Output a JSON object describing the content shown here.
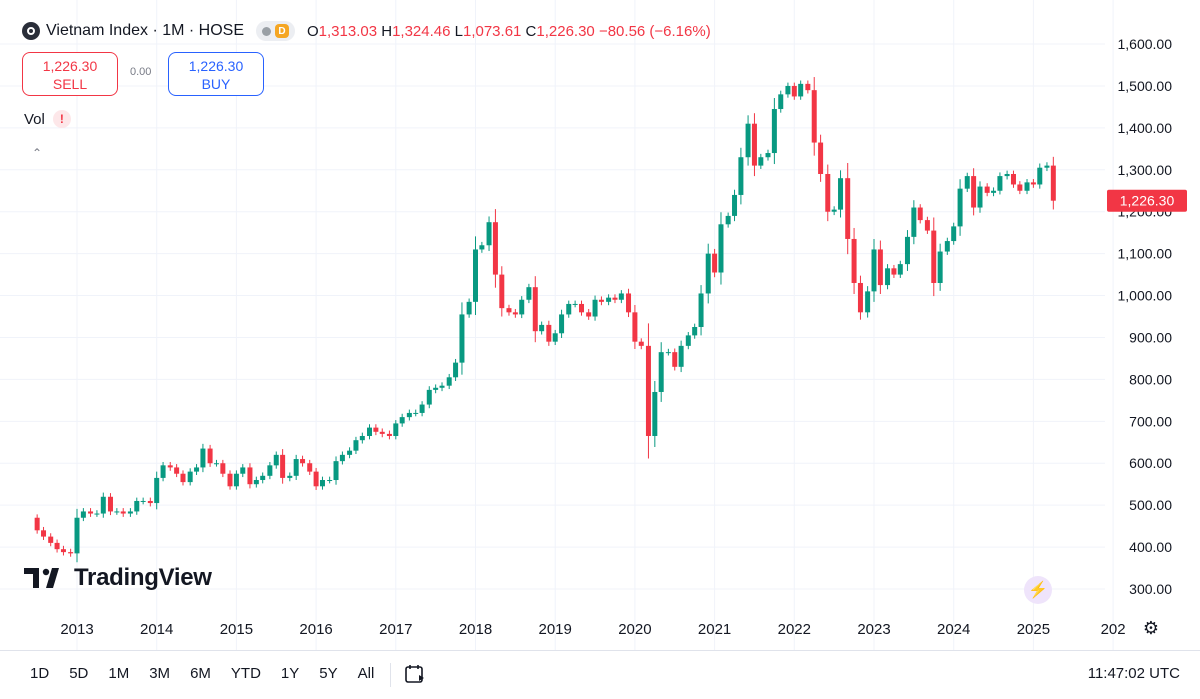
{
  "header": {
    "symbol": "Vietnam Index · 1M · HOSE",
    "ohlc_open_label": "O",
    "ohlc_open": "1,313.03",
    "ohlc_high_label": "H",
    "ohlc_high": "1,324.46",
    "ohlc_low_label": "L",
    "ohlc_low": "1,073.61",
    "ohlc_close_label": "C",
    "ohlc_close": "1,226.30",
    "ohlc_change": "−80.56 (−6.16%)"
  },
  "trade": {
    "sell_price": "1,226.30",
    "sell_label": "SELL",
    "spread": "0.00",
    "buy_price": "1,226.30",
    "buy_label": "BUY"
  },
  "volume_label": "Vol",
  "brand": "TradingView",
  "bottom": {
    "ranges": [
      "1D",
      "5D",
      "1M",
      "3M",
      "6M",
      "YTD",
      "1Y",
      "5Y",
      "All"
    ],
    "time": "11:47:02 UTC"
  },
  "colors": {
    "up": "#089981",
    "down": "#f23645",
    "grid": "#f0f3fa"
  },
  "chart_data": {
    "type": "candlestick",
    "title": "Vietnam Index · 1M · HOSE",
    "ylim": [
      250,
      1650
    ],
    "y_ticks": [
      300,
      400,
      500,
      600,
      700,
      800,
      900,
      1000,
      1100,
      1200,
      1300,
      1400,
      1500,
      1600
    ],
    "y_tick_labels": [
      "300.00",
      "400.00",
      "500.00",
      "600.00",
      "700.00",
      "800.00",
      "900.00",
      "1,000.00",
      "1,100.00",
      "1,200.00",
      "1,300.00",
      "1,400.00",
      "1,500.00",
      "1,600.00"
    ],
    "x_labels": [
      "2013",
      "2014",
      "2015",
      "2016",
      "2017",
      "2018",
      "2019",
      "2020",
      "2021",
      "2022",
      "2023",
      "2024",
      "2025",
      "202"
    ],
    "last_price_label": "1,226.30",
    "grid": true,
    "monthly_close": [
      [
        2012.42,
        470
      ],
      [
        2012.5,
        440
      ],
      [
        2012.58,
        425
      ],
      [
        2012.67,
        410
      ],
      [
        2012.75,
        395
      ],
      [
        2012.83,
        388
      ],
      [
        2012.92,
        385
      ],
      [
        2013.0,
        470
      ],
      [
        2013.08,
        485
      ],
      [
        2013.17,
        480
      ],
      [
        2013.25,
        480
      ],
      [
        2013.33,
        520
      ],
      [
        2013.42,
        485
      ],
      [
        2013.5,
        485
      ],
      [
        2013.58,
        480
      ],
      [
        2013.67,
        485
      ],
      [
        2013.75,
        510
      ],
      [
        2013.83,
        510
      ],
      [
        2013.92,
        505
      ],
      [
        2014.0,
        565
      ],
      [
        2014.08,
        595
      ],
      [
        2014.17,
        590
      ],
      [
        2014.25,
        575
      ],
      [
        2014.33,
        555
      ],
      [
        2014.42,
        580
      ],
      [
        2014.5,
        590
      ],
      [
        2014.58,
        635
      ],
      [
        2014.67,
        600
      ],
      [
        2014.75,
        600
      ],
      [
        2014.83,
        575
      ],
      [
        2014.92,
        545
      ],
      [
        2015.0,
        575
      ],
      [
        2015.08,
        590
      ],
      [
        2015.17,
        550
      ],
      [
        2015.25,
        560
      ],
      [
        2015.33,
        570
      ],
      [
        2015.42,
        595
      ],
      [
        2015.5,
        620
      ],
      [
        2015.58,
        565
      ],
      [
        2015.67,
        570
      ],
      [
        2015.75,
        610
      ],
      [
        2015.83,
        600
      ],
      [
        2015.92,
        580
      ],
      [
        2016.0,
        545
      ],
      [
        2016.08,
        560
      ],
      [
        2016.17,
        560
      ],
      [
        2016.25,
        605
      ],
      [
        2016.33,
        620
      ],
      [
        2016.42,
        630
      ],
      [
        2016.5,
        655
      ],
      [
        2016.58,
        665
      ],
      [
        2016.67,
        685
      ],
      [
        2016.75,
        675
      ],
      [
        2016.83,
        670
      ],
      [
        2016.92,
        665
      ],
      [
        2017.0,
        695
      ],
      [
        2017.08,
        710
      ],
      [
        2017.17,
        720
      ],
      [
        2017.25,
        720
      ],
      [
        2017.33,
        740
      ],
      [
        2017.42,
        775
      ],
      [
        2017.5,
        780
      ],
      [
        2017.58,
        785
      ],
      [
        2017.67,
        805
      ],
      [
        2017.75,
        840
      ],
      [
        2017.83,
        955
      ],
      [
        2017.92,
        985
      ],
      [
        2018.0,
        1110
      ],
      [
        2018.08,
        1120
      ],
      [
        2018.17,
        1175
      ],
      [
        2018.25,
        1050
      ],
      [
        2018.33,
        970
      ],
      [
        2018.42,
        960
      ],
      [
        2018.5,
        955
      ],
      [
        2018.58,
        990
      ],
      [
        2018.67,
        1020
      ],
      [
        2018.75,
        915
      ],
      [
        2018.83,
        930
      ],
      [
        2018.92,
        890
      ],
      [
        2019.0,
        910
      ],
      [
        2019.08,
        955
      ],
      [
        2019.17,
        980
      ],
      [
        2019.25,
        980
      ],
      [
        2019.33,
        960
      ],
      [
        2019.42,
        950
      ],
      [
        2019.5,
        990
      ],
      [
        2019.58,
        985
      ],
      [
        2019.67,
        995
      ],
      [
        2019.75,
        990
      ],
      [
        2019.83,
        1005
      ],
      [
        2019.92,
        960
      ],
      [
        2020.0,
        890
      ],
      [
        2020.08,
        880
      ],
      [
        2020.17,
        665
      ],
      [
        2020.25,
        770
      ],
      [
        2020.33,
        865
      ],
      [
        2020.42,
        865
      ],
      [
        2020.5,
        830
      ],
      [
        2020.58,
        880
      ],
      [
        2020.67,
        905
      ],
      [
        2020.75,
        925
      ],
      [
        2020.83,
        1005
      ],
      [
        2020.92,
        1100
      ],
      [
        2021.0,
        1055
      ],
      [
        2021.08,
        1170
      ],
      [
        2021.17,
        1190
      ],
      [
        2021.25,
        1240
      ],
      [
        2021.33,
        1330
      ],
      [
        2021.42,
        1410
      ],
      [
        2021.5,
        1310
      ],
      [
        2021.58,
        1330
      ],
      [
        2021.67,
        1340
      ],
      [
        2021.75,
        1445
      ],
      [
        2021.83,
        1480
      ],
      [
        2021.92,
        1500
      ],
      [
        2022.0,
        1475
      ],
      [
        2022.08,
        1505
      ],
      [
        2022.17,
        1490
      ],
      [
        2022.25,
        1365
      ],
      [
        2022.33,
        1290
      ],
      [
        2022.42,
        1200
      ],
      [
        2022.5,
        1205
      ],
      [
        2022.58,
        1280
      ],
      [
        2022.67,
        1135
      ],
      [
        2022.75,
        1030
      ],
      [
        2022.83,
        960
      ],
      [
        2022.92,
        1010
      ],
      [
        2023.0,
        1110
      ],
      [
        2023.08,
        1025
      ],
      [
        2023.17,
        1065
      ],
      [
        2023.25,
        1050
      ],
      [
        2023.33,
        1075
      ],
      [
        2023.42,
        1140
      ],
      [
        2023.5,
        1210
      ],
      [
        2023.58,
        1180
      ],
      [
        2023.67,
        1155
      ],
      [
        2023.75,
        1030
      ],
      [
        2023.83,
        1105
      ],
      [
        2023.92,
        1130
      ],
      [
        2024.0,
        1165
      ],
      [
        2024.08,
        1255
      ],
      [
        2024.17,
        1285
      ],
      [
        2024.25,
        1210
      ],
      [
        2024.33,
        1260
      ],
      [
        2024.42,
        1245
      ],
      [
        2024.5,
        1250
      ],
      [
        2024.58,
        1285
      ],
      [
        2024.67,
        1290
      ],
      [
        2024.75,
        1265
      ],
      [
        2024.83,
        1250
      ],
      [
        2024.92,
        1270
      ],
      [
        2025.0,
        1265
      ],
      [
        2025.08,
        1305
      ],
      [
        2025.17,
        1310
      ],
      [
        2025.25,
        1226.3
      ]
    ]
  }
}
